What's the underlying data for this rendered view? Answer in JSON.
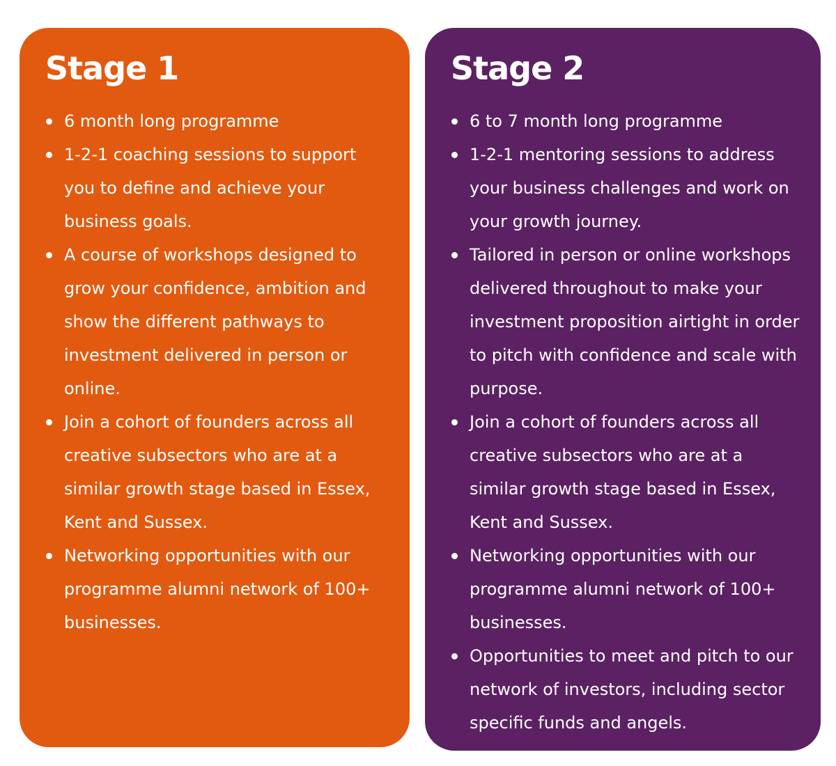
{
  "colors": {
    "stage1_background": "#e25a10",
    "stage2_background": "#5b2162",
    "text": "#ffffff",
    "page_background": "#ffffff"
  },
  "cards": [
    {
      "title": "Stage 1",
      "bullets": [
        "6 month long programme",
        "1-2-1 coaching sessions to support you to define and achieve your business goals.",
        "A course of workshops designed to grow your confidence, ambition and show the different pathways to investment delivered in person or online.",
        "Join a cohort of founders across all creative subsectors who are at a similar growth stage based in Essex, Kent and Sussex.",
        "Networking opportunities with our programme alumni network of 100+ businesses."
      ]
    },
    {
      "title": "Stage 2",
      "bullets": [
        "6 to 7 month long programme",
        "1-2-1 mentoring sessions to address your business challenges and work on your growth journey.",
        "Tailored in person or online workshops delivered throughout to make your investment proposition airtight in order to pitch with confidence and scale with purpose.",
        "Join a cohort of founders across all creative subsectors who are at a similar growth stage based in Essex, Kent and Sussex.",
        "Networking opportunities with our programme alumni network of 100+ businesses.",
        "Opportunities to meet and pitch to our network of investors, including sector specific funds and angels."
      ]
    }
  ]
}
